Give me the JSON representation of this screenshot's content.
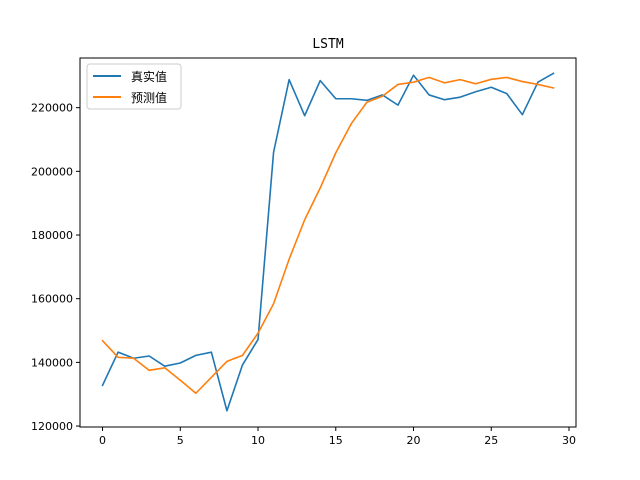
{
  "chart_data": {
    "type": "line",
    "title": "LSTM",
    "xlabel": "",
    "ylabel": "",
    "xlim": [
      -1.45,
      30.45
    ],
    "ylim": [
      119700,
      235600
    ],
    "xticks": [
      0,
      5,
      10,
      15,
      20,
      25,
      30
    ],
    "yticks": [
      120000,
      140000,
      160000,
      180000,
      200000,
      220000
    ],
    "x": [
      0,
      1,
      2,
      3,
      4,
      5,
      6,
      7,
      8,
      9,
      10,
      11,
      12,
      13,
      14,
      15,
      16,
      17,
      18,
      19,
      20,
      21,
      22,
      23,
      24,
      25,
      26,
      27,
      28,
      29
    ],
    "grid": false,
    "legend_position": "top-left",
    "series": [
      {
        "name": "真实值",
        "color": "#1f77b4",
        "values": [
          132800,
          143200,
          141300,
          142000,
          138800,
          139800,
          142200,
          143200,
          124800,
          139200,
          147200,
          206000,
          228800,
          217500,
          228500,
          222800,
          222800,
          222300,
          224000,
          220800,
          230200,
          224000,
          222500,
          223300,
          225000,
          226400,
          224400,
          217800,
          228000,
          230800
        ]
      },
      {
        "name": "预测值",
        "color": "#ff7f0e",
        "values": [
          146800,
          141600,
          141300,
          137500,
          138300,
          134400,
          130300,
          135300,
          140300,
          142200,
          149200,
          158400,
          172400,
          184800,
          194800,
          205800,
          215000,
          221700,
          223600,
          227300,
          228000,
          229500,
          227800,
          228800,
          227500,
          228900,
          229500,
          228200,
          227300,
          226200
        ]
      }
    ]
  }
}
